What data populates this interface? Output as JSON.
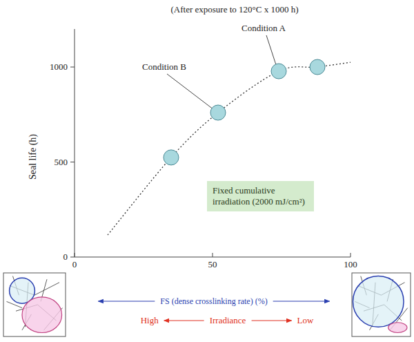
{
  "chart_data": {
    "type": "scatter",
    "title": "(After exposure to 120°C x 1000 h)",
    "x_label": "FS (dense crosslinking rate) (%)",
    "y_label": "Seal life (h)",
    "irradiance_label": "Irradiance",
    "irradiance_high": "High",
    "irradiance_low": "Low",
    "text_box": "Fixed cumulative irradiation (2000 mJ/cm²)",
    "xlim": [
      0,
      100
    ],
    "xticks": [
      0,
      50,
      100
    ],
    "ylim": [
      0,
      1200
    ],
    "yticks": [
      0,
      500,
      1000
    ],
    "grid": false,
    "series": [
      {
        "type": "line",
        "line_style": "dotted",
        "color": "#333333",
        "x": [
          12,
          35,
          52,
          74,
          88,
          100
        ],
        "values": [
          116,
          524,
          760,
          978,
          1000,
          1025
        ]
      },
      {
        "type": "scatter",
        "marker": "circle",
        "color": "#a8d8de",
        "x": [
          35,
          52,
          74,
          88
        ],
        "values": [
          524,
          760,
          978,
          1000
        ]
      }
    ],
    "annotations": [
      {
        "text": "Condition A",
        "x": 74,
        "y": 978
      },
      {
        "text": "Condition B",
        "x": 52,
        "y": 760
      }
    ]
  }
}
